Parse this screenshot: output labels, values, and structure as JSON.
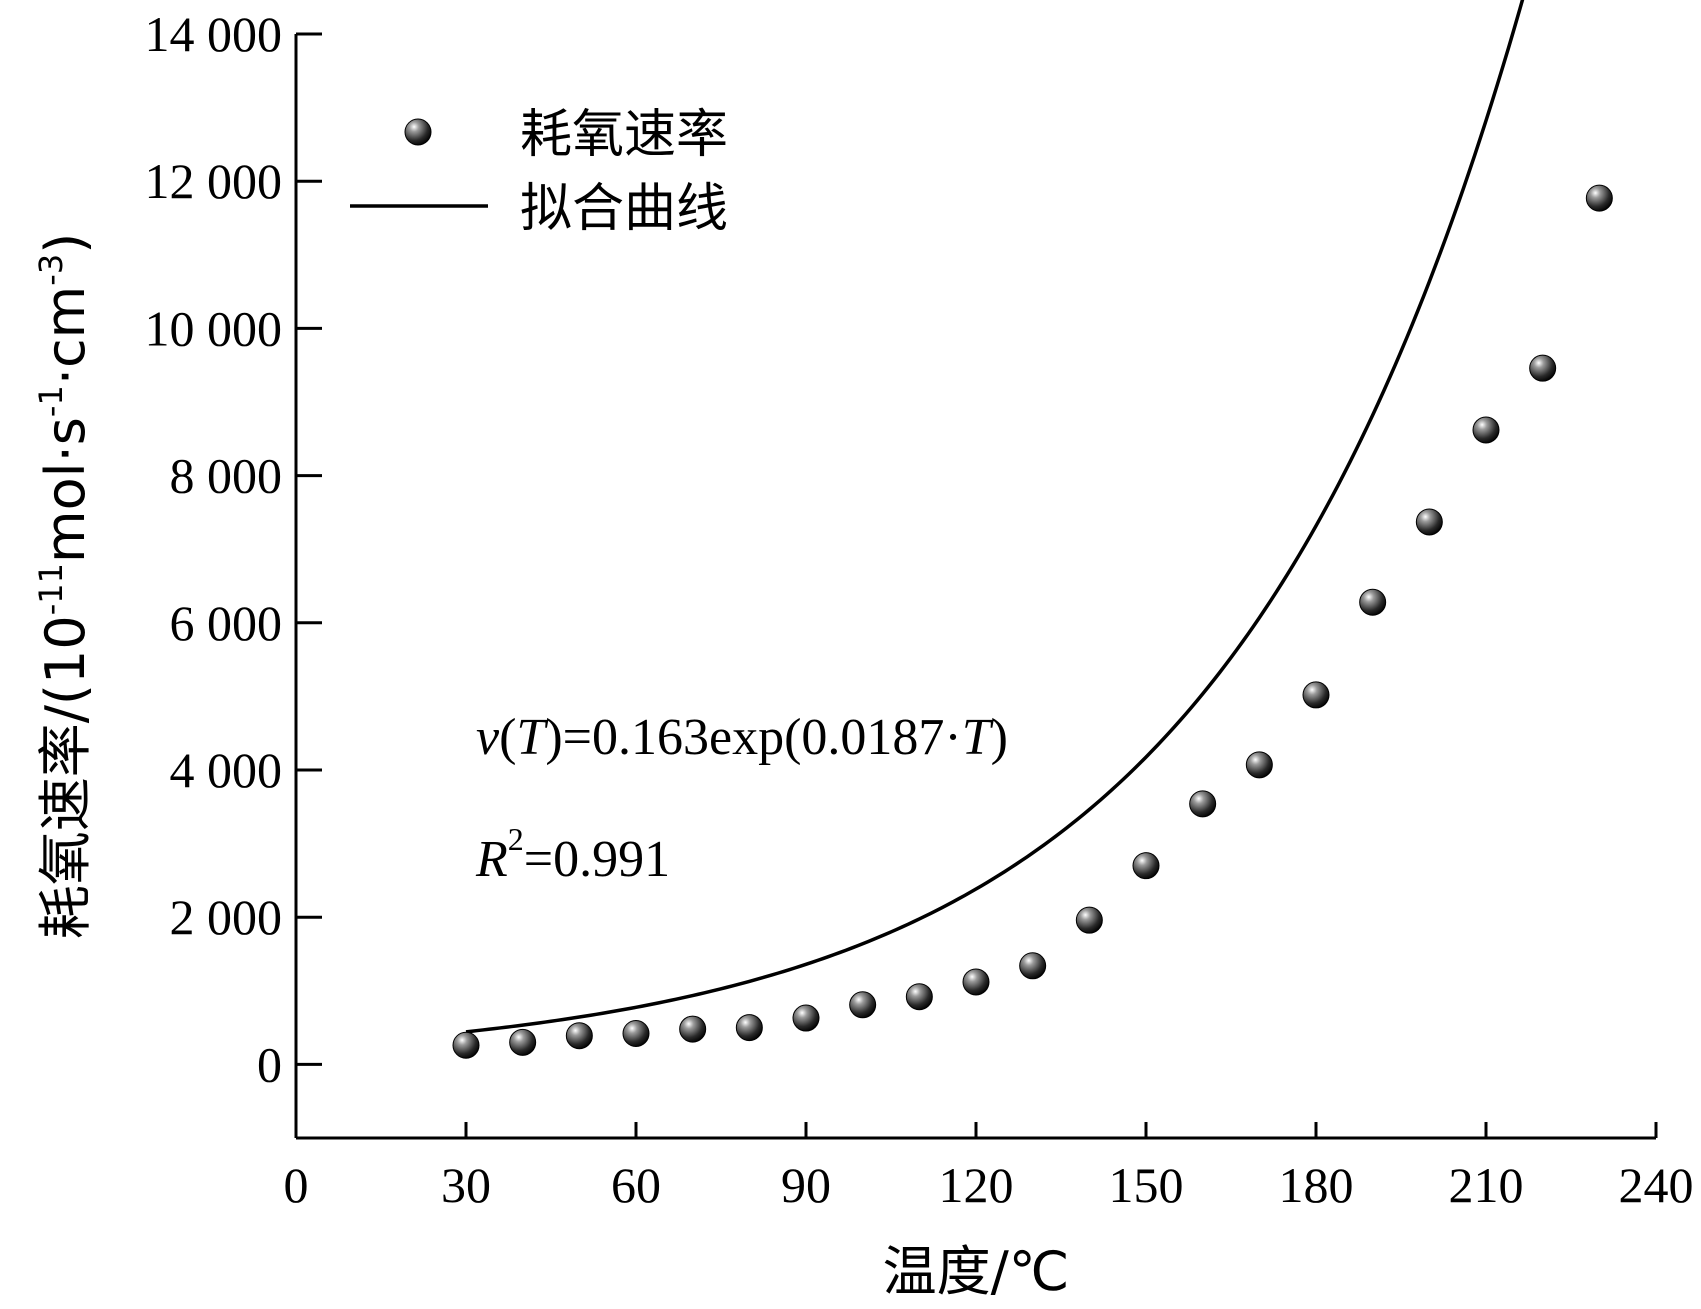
{
  "chart_data": {
    "type": "scatter",
    "xlabel": "温度/℃",
    "ylabel": {
      "prefix": "耗氧速率/(10",
      "exp1": "-11",
      "mid1": "mol·s",
      "exp2": "-1",
      "mid2": "·cm",
      "exp3": "-3",
      "suffix": ")"
    },
    "xlim": [
      0,
      240
    ],
    "ylim": [
      -1000,
      14000
    ],
    "x_ticks": [
      0,
      30,
      60,
      90,
      120,
      150,
      180,
      210,
      240
    ],
    "x_tick_labels": [
      "0",
      "30",
      "60",
      "90",
      "120",
      "150",
      "180",
      "210",
      "240"
    ],
    "y_ticks": [
      0,
      2000,
      4000,
      6000,
      8000,
      10000,
      12000,
      14000
    ],
    "y_tick_labels": [
      "0",
      "2 000",
      "4 000",
      "6 000",
      "8 000",
      "10 000",
      "12 000",
      "14 000"
    ],
    "grid": false,
    "legend_position": "top-left",
    "series": [
      {
        "name": "耗氧速率",
        "kind": "scatter",
        "x": [
          30,
          40,
          50,
          60,
          70,
          80,
          90,
          100,
          110,
          120,
          130,
          140,
          150,
          160,
          170,
          180,
          190,
          200,
          210,
          220,
          230
        ],
        "y": [
          260,
          300,
          390,
          420,
          480,
          500,
          630,
          810,
          920,
          1120,
          1340,
          1960,
          2700,
          3540,
          4070,
          5020,
          6280,
          7370,
          8620,
          9460,
          11770
        ]
      },
      {
        "name": "拟合曲线",
        "kind": "line",
        "x_range": [
          30,
          230
        ],
        "fit_a": 0.163,
        "fit_b": 0.0187
      }
    ],
    "annotations": {
      "equation": {
        "v": "v",
        "open": "(",
        "T1": "T",
        "middle": ")=0.163exp(0.0187·",
        "T2": "T",
        "close": ")"
      },
      "r2": {
        "R": "R",
        "exp": "2",
        "value": "=0.991"
      }
    }
  }
}
